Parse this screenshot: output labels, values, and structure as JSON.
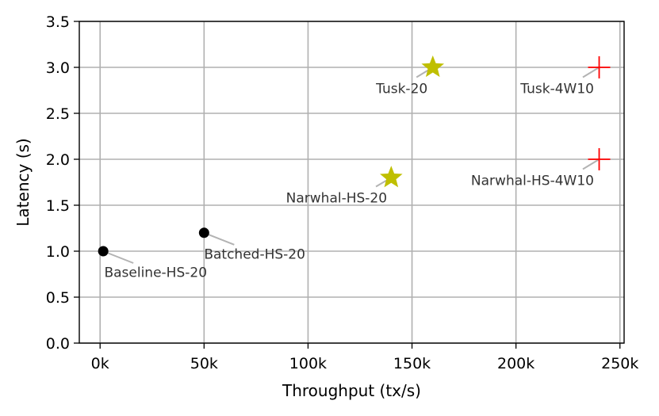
{
  "chart_data": {
    "type": "scatter",
    "xlabel": "Throughput (tx/s)",
    "ylabel": "Latency (s)",
    "xlim": [
      -10000,
      252000
    ],
    "ylim": [
      0,
      3.5
    ],
    "grid": true,
    "x_ticks": [
      {
        "value": 0,
        "label": "0k"
      },
      {
        "value": 50000,
        "label": "50k"
      },
      {
        "value": 100000,
        "label": "100k"
      },
      {
        "value": 150000,
        "label": "150k"
      },
      {
        "value": 200000,
        "label": "200k"
      },
      {
        "value": 250000,
        "label": "250k"
      }
    ],
    "y_ticks": [
      {
        "value": 0.0,
        "label": "0.0"
      },
      {
        "value": 0.5,
        "label": "0.5"
      },
      {
        "value": 1.0,
        "label": "1.0"
      },
      {
        "value": 1.5,
        "label": "1.5"
      },
      {
        "value": 2.0,
        "label": "2.0"
      },
      {
        "value": 2.5,
        "label": "2.5"
      },
      {
        "value": 3.0,
        "label": "3.0"
      },
      {
        "value": 3.5,
        "label": "3.5"
      }
    ],
    "points": [
      {
        "label": "Baseline-HS-20",
        "x": 1500,
        "y": 1.0,
        "marker": "circle",
        "color": "#000000",
        "label_x": 2000,
        "label_y": 0.72,
        "anchor": "start"
      },
      {
        "label": "Batched-HS-20",
        "x": 50000,
        "y": 1.2,
        "marker": "circle",
        "color": "#000000",
        "label_x": 50000,
        "label_y": 0.92,
        "anchor": "start"
      },
      {
        "label": "Narwhal-HS-20",
        "x": 140000,
        "y": 1.8,
        "marker": "star",
        "color": "#bfbf00",
        "label_x": 138000,
        "label_y": 1.53,
        "anchor": "end"
      },
      {
        "label": "Tusk-20",
        "x": 160000,
        "y": 3.0,
        "marker": "star",
        "color": "#bfbf00",
        "label_x": 157500,
        "label_y": 2.72,
        "anchor": "end"
      },
      {
        "label": "Narwhal-HS-4W10",
        "x": 240000,
        "y": 2.0,
        "marker": "plus",
        "color": "#ff0000",
        "label_x": 237500,
        "label_y": 1.72,
        "anchor": "end"
      },
      {
        "label": "Tusk-4W10",
        "x": 240000,
        "y": 3.0,
        "marker": "plus",
        "color": "#ff0000",
        "label_x": 237500,
        "label_y": 2.72,
        "anchor": "end"
      }
    ]
  }
}
